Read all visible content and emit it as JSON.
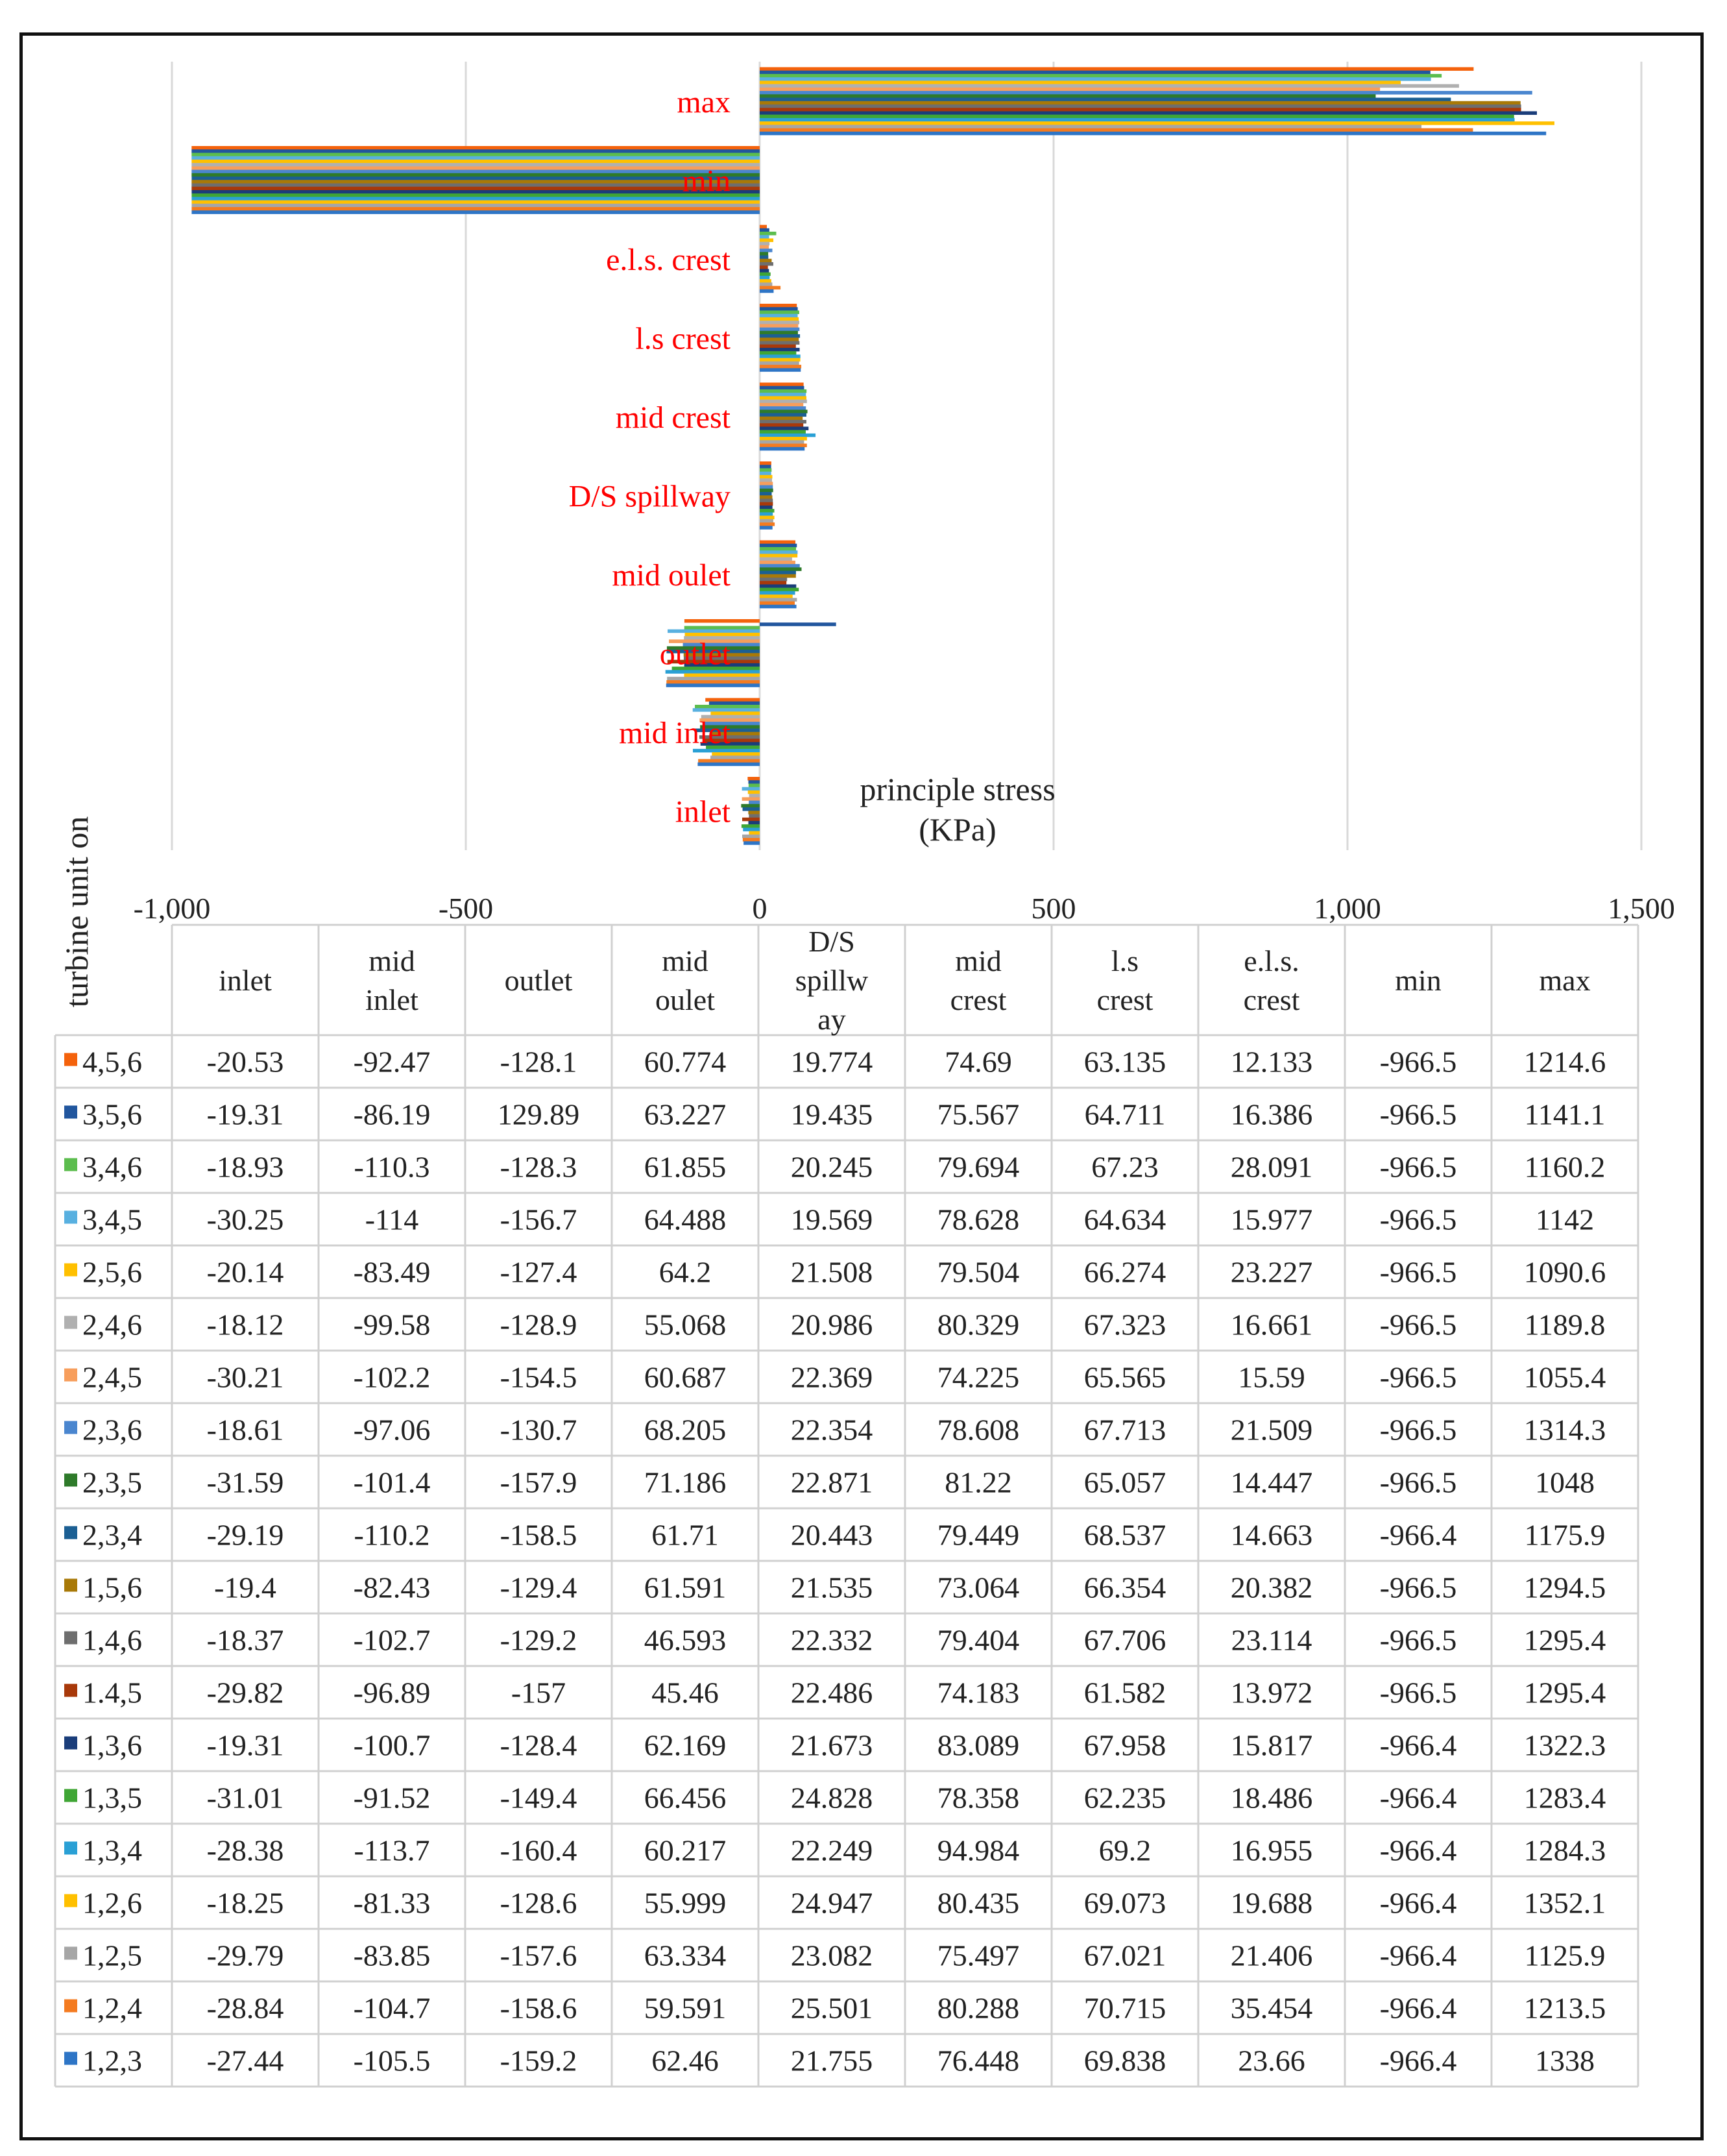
{
  "chart_data": {
    "type": "bar",
    "orientation": "horizontal",
    "xlabel": "principle stress\n(KPa)",
    "ylabel": "turbine unit on",
    "xlim": [
      -1000,
      1500
    ],
    "xticks": [
      -1000,
      -500,
      0,
      500,
      1000,
      1500
    ],
    "xtick_labels": [
      "-1,000",
      "-500",
      "0",
      "500",
      "1,000",
      "1,500"
    ],
    "grid": "vertical",
    "legend": "data table below chart",
    "categories": [
      "inlet",
      "mid inlet",
      "outlet",
      "mid oulet",
      "D/S spillway",
      "mid crest",
      "l.s crest",
      "e.l.s. crest",
      "min",
      "max"
    ],
    "table_headers": [
      "inlet",
      "mid\ninlet",
      "outlet",
      "mid\noulet",
      "D/S\nspillw\nay",
      "mid\ncrest",
      "l.s\ncrest",
      "e.l.s.\ncrest",
      "min",
      "max"
    ],
    "series": [
      {
        "name": "4,5,6",
        "color": "#f4620c",
        "values": [
          "-20.53",
          "-92.47",
          "-128.1",
          "60.774",
          "19.774",
          "74.69",
          "63.135",
          "12.133",
          "-966.5",
          "1214.6"
        ]
      },
      {
        "name": "3,5,6",
        "color": "#21569e",
        "values": [
          "-19.31",
          "-86.19",
          "129.89",
          "63.227",
          "19.435",
          "75.567",
          "64.711",
          "16.386",
          "-966.5",
          "1141.1"
        ]
      },
      {
        "name": "3,4,6",
        "color": "#5cbd4e",
        "values": [
          "-18.93",
          "-110.3",
          "-128.3",
          "61.855",
          "20.245",
          "79.694",
          "67.23",
          "28.091",
          "-966.5",
          "1160.2"
        ]
      },
      {
        "name": "3,4,5",
        "color": "#58b0e0",
        "values": [
          "-30.25",
          "-114",
          "-156.7",
          "64.488",
          "19.569",
          "78.628",
          "64.634",
          "15.977",
          "-966.5",
          "1142"
        ]
      },
      {
        "name": "2,5,6",
        "color": "#ffc000",
        "values": [
          "-20.14",
          "-83.49",
          "-127.4",
          "64.2",
          "21.508",
          "79.504",
          "66.274",
          "23.227",
          "-966.5",
          "1090.6"
        ]
      },
      {
        "name": "2,4,6",
        "color": "#b0b0b0",
        "values": [
          "-18.12",
          "-99.58",
          "-128.9",
          "55.068",
          "20.986",
          "80.329",
          "67.323",
          "16.661",
          "-966.5",
          "1189.8"
        ]
      },
      {
        "name": "2,4,5",
        "color": "#f79e5c",
        "values": [
          "-30.21",
          "-102.2",
          "-154.5",
          "60.687",
          "22.369",
          "74.225",
          "65.565",
          "15.59",
          "-966.5",
          "1055.4"
        ]
      },
      {
        "name": "2,3,6",
        "color": "#4a86cf",
        "values": [
          "-18.61",
          "-97.06",
          "-130.7",
          "68.205",
          "22.354",
          "78.608",
          "67.713",
          "21.509",
          "-966.5",
          "1314.3"
        ]
      },
      {
        "name": "2,3,5",
        "color": "#2e7a2a",
        "values": [
          "-31.59",
          "-101.4",
          "-157.9",
          "71.186",
          "22.871",
          "81.22",
          "65.057",
          "14.447",
          "-966.5",
          "1048"
        ]
      },
      {
        "name": "2,3,4",
        "color": "#1b5f93",
        "values": [
          "-29.19",
          "-110.2",
          "-158.5",
          "61.71",
          "20.443",
          "79.449",
          "68.537",
          "14.663",
          "-966.4",
          "1175.9"
        ]
      },
      {
        "name": "1,5,6",
        "color": "#a87908",
        "values": [
          "-19.4",
          "-82.43",
          "-129.4",
          "61.591",
          "21.535",
          "73.064",
          "66.354",
          "20.382",
          "-966.5",
          "1294.5"
        ]
      },
      {
        "name": "1,4,6",
        "color": "#6e6e6e",
        "values": [
          "-18.37",
          "-102.7",
          "-129.2",
          "46.593",
          "22.332",
          "79.404",
          "67.706",
          "23.114",
          "-966.5",
          "1295.4"
        ]
      },
      {
        "name": "1.4,5",
        "color": "#a8390a",
        "values": [
          "-29.82",
          "-96.89",
          "-157",
          "45.46",
          "22.486",
          "74.183",
          "61.582",
          "13.972",
          "-966.5",
          "1295.4"
        ]
      },
      {
        "name": "1,3,6",
        "color": "#1a3d7a",
        "values": [
          "-19.31",
          "-100.7",
          "-128.4",
          "62.169",
          "21.673",
          "83.089",
          "67.958",
          "15.817",
          "-966.4",
          "1322.3"
        ]
      },
      {
        "name": "1,3,5",
        "color": "#3fa635",
        "values": [
          "-31.01",
          "-91.52",
          "-149.4",
          "66.456",
          "24.828",
          "78.358",
          "62.235",
          "18.486",
          "-966.4",
          "1283.4"
        ]
      },
      {
        "name": "1,3,4",
        "color": "#2aa0d5",
        "values": [
          "-28.38",
          "-113.7",
          "-160.4",
          "60.217",
          "22.249",
          "94.984",
          "69.2",
          "16.955",
          "-966.4",
          "1284.3"
        ]
      },
      {
        "name": "1,2,6",
        "color": "#ffc000",
        "values": [
          "-18.25",
          "-81.33",
          "-128.6",
          "55.999",
          "24.947",
          "80.435",
          "69.073",
          "19.688",
          "-966.4",
          "1352.1"
        ]
      },
      {
        "name": "1,2,5",
        "color": "#a6a6a6",
        "values": [
          "-29.79",
          "-83.85",
          "-157.6",
          "63.334",
          "23.082",
          "75.497",
          "67.021",
          "21.406",
          "-966.4",
          "1125.9"
        ]
      },
      {
        "name": "1,2,4",
        "color": "#f47b20",
        "values": [
          "-28.84",
          "-104.7",
          "-158.6",
          "59.591",
          "25.501",
          "80.288",
          "70.715",
          "35.454",
          "-966.4",
          "1213.5"
        ]
      },
      {
        "name": "1,2,3",
        "color": "#2e75c6",
        "values": [
          "-27.44",
          "-105.5",
          "-159.2",
          "62.46",
          "21.755",
          "76.448",
          "69.838",
          "23.66",
          "-966.4",
          "1338"
        ]
      }
    ]
  }
}
